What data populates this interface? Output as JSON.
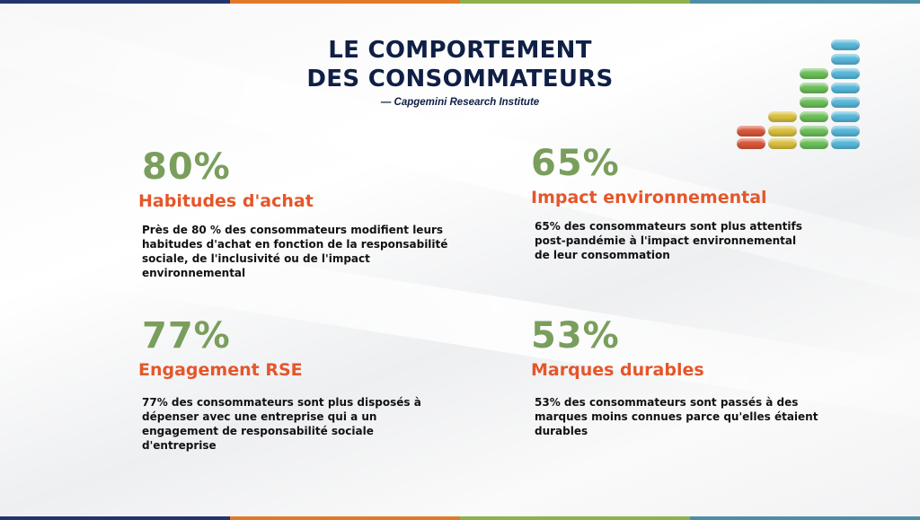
{
  "colors": {
    "title": "#0f1f45",
    "percent": "#7a9e5c",
    "heading": "#e5562a",
    "body": "#111111",
    "stripe": [
      "#24336b",
      "#e07a2a",
      "#8fb04e",
      "#4d8ea6"
    ]
  },
  "header": {
    "title_line1": "LE COMPORTEMENT",
    "title_line2": "DES CONSOMMATEURS",
    "source": "— Capgemini Research Institute"
  },
  "decoration": {
    "icon": "pill-bar-chart-icon"
  },
  "stats": [
    {
      "percent": "80%",
      "heading": "Habitudes d'achat",
      "text": "Près de 80 % des consommateurs modifient leurs habitudes d'achat en fonction de la responsabilité sociale, de l'inclusivité ou de l'impact environnemental"
    },
    {
      "percent": "65%",
      "heading": "Impact environnemental",
      "text": "65% des consommateurs sont plus attentifs post-pandémie à l'impact environnemental de leur consommation"
    },
    {
      "percent": "77%",
      "heading": "Engagement RSE",
      "text": "77% des consommateurs sont plus disposés à dépenser avec une entreprise qui a un engagement de responsabilité sociale d'entreprise"
    },
    {
      "percent": "53%",
      "heading": "Marques durables",
      "text": "53% des consommateurs sont passés à des marques moins connues parce qu'elles étaient durables"
    }
  ]
}
